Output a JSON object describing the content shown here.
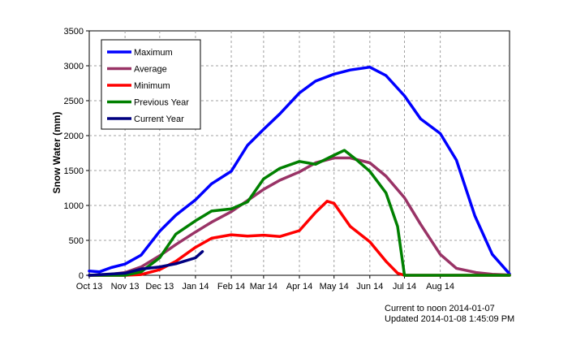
{
  "chart_data": {
    "type": "line",
    "ylabel": "Snow Water (mm)",
    "xlabel": "",
    "ylim": [
      0,
      3500
    ],
    "yticks": [
      0,
      500,
      1000,
      1500,
      2000,
      2500,
      3000,
      3500
    ],
    "xlim": [
      "2013-10-01",
      "2014-09-30"
    ],
    "x_ticks": [
      {
        "date": "2013-10-01",
        "label": "Oct 13"
      },
      {
        "date": "2013-11-01",
        "label": "Nov 13"
      },
      {
        "date": "2013-12-01",
        "label": "Dec 13"
      },
      {
        "date": "2014-01-01",
        "label": "Jan 14"
      },
      {
        "date": "2014-02-01",
        "label": "Feb 14"
      },
      {
        "date": "2014-03-01",
        "label": "Mar 14"
      },
      {
        "date": "2014-04-01",
        "label": "Apr 14"
      },
      {
        "date": "2014-05-01",
        "label": "May 14"
      },
      {
        "date": "2014-06-01",
        "label": "Jun 14"
      },
      {
        "date": "2014-07-01",
        "label": "Jul 14"
      },
      {
        "date": "2014-08-01",
        "label": "Aug 14"
      }
    ],
    "grid": true,
    "legend_position": "top-left",
    "series": [
      {
        "name": "Maximum",
        "color": "#0000ff",
        "x": [
          "2013-10-01",
          "2013-10-10",
          "2013-10-20",
          "2013-11-01",
          "2013-11-15",
          "2013-12-01",
          "2013-12-15",
          "2014-01-01",
          "2014-01-15",
          "2014-02-01",
          "2014-02-15",
          "2014-03-01",
          "2014-03-15",
          "2014-04-01",
          "2014-04-15",
          "2014-05-01",
          "2014-05-15",
          "2014-06-01",
          "2014-06-15",
          "2014-07-01",
          "2014-07-15",
          "2014-08-01",
          "2014-08-15",
          "2014-08-31",
          "2014-09-15",
          "2014-09-30"
        ],
        "y": [
          60,
          50,
          110,
          160,
          290,
          630,
          860,
          1080,
          1310,
          1490,
          1860,
          2090,
          2310,
          2610,
          2780,
          2880,
          2940,
          2980,
          2860,
          2570,
          2240,
          2030,
          1650,
          850,
          300,
          20
        ]
      },
      {
        "name": "Average",
        "color": "#993366",
        "x": [
          "2013-10-01",
          "2013-10-15",
          "2013-11-01",
          "2013-11-15",
          "2013-12-01",
          "2013-12-15",
          "2014-01-01",
          "2014-01-15",
          "2014-02-01",
          "2014-02-15",
          "2014-03-01",
          "2014-03-15",
          "2014-04-01",
          "2014-04-15",
          "2014-05-01",
          "2014-05-15",
          "2014-06-01",
          "2014-06-15",
          "2014-07-01",
          "2014-07-15",
          "2014-08-01",
          "2014-08-15",
          "2014-09-01",
          "2014-09-15",
          "2014-09-30"
        ],
        "y": [
          0,
          5,
          40,
          120,
          280,
          440,
          620,
          760,
          910,
          1070,
          1230,
          1360,
          1480,
          1610,
          1680,
          1680,
          1610,
          1420,
          1110,
          730,
          300,
          100,
          40,
          15,
          5
        ]
      },
      {
        "name": "Minimum",
        "color": "#ff0000",
        "x": [
          "2013-10-01",
          "2013-11-01",
          "2013-11-15",
          "2013-12-01",
          "2013-12-15",
          "2014-01-01",
          "2014-01-15",
          "2014-02-01",
          "2014-02-15",
          "2014-03-01",
          "2014-03-15",
          "2014-04-01",
          "2014-04-15",
          "2014-04-25",
          "2014-05-01",
          "2014-05-15",
          "2014-06-01",
          "2014-06-15",
          "2014-06-25",
          "2014-07-01",
          "2014-09-30"
        ],
        "y": [
          0,
          0,
          10,
          80,
          200,
          400,
          530,
          580,
          560,
          575,
          555,
          640,
          900,
          1060,
          1030,
          700,
          480,
          200,
          30,
          0,
          0
        ]
      },
      {
        "name": "Previous Year",
        "color": "#008000",
        "x": [
          "2013-10-01",
          "2013-11-01",
          "2013-11-15",
          "2013-12-01",
          "2013-12-15",
          "2014-01-01",
          "2014-01-15",
          "2014-02-01",
          "2014-02-15",
          "2014-03-01",
          "2014-03-15",
          "2014-04-01",
          "2014-04-15",
          "2014-05-01",
          "2014-05-10",
          "2014-05-20",
          "2014-06-01",
          "2014-06-15",
          "2014-06-25",
          "2014-07-01",
          "2014-09-30"
        ],
        "y": [
          0,
          0,
          50,
          250,
          590,
          780,
          920,
          950,
          1050,
          1380,
          1530,
          1630,
          1590,
          1720,
          1790,
          1660,
          1490,
          1180,
          700,
          0,
          0
        ]
      },
      {
        "name": "Current Year",
        "color": "#000080",
        "x": [
          "2013-10-01",
          "2013-11-01",
          "2013-11-15",
          "2013-12-01",
          "2013-12-15",
          "2014-01-01",
          "2014-01-07"
        ],
        "y": [
          0,
          30,
          90,
          120,
          165,
          250,
          340
        ]
      }
    ]
  },
  "footnotes": {
    "current": "Current to noon 2014-01-07",
    "updated": "Updated 2014-01-08 1:45:09 PM"
  }
}
